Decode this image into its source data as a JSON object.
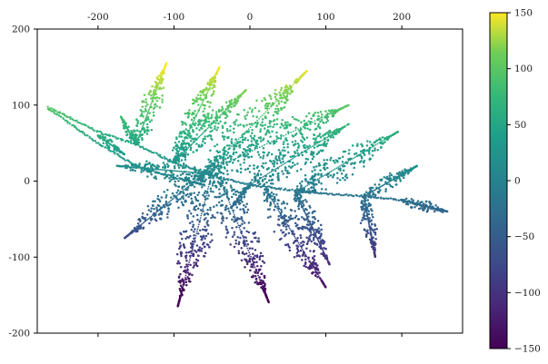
{
  "chart_data": {
    "type": "scatter",
    "title": "",
    "xlabel": "",
    "ylabel": "",
    "xlim": [
      -280,
      280
    ],
    "ylim": [
      -200,
      200
    ],
    "x_ticks": [
      -200,
      -100,
      0,
      100,
      200
    ],
    "x_tick_labels": [
      "-200",
      "-100",
      "0",
      "100",
      "200"
    ],
    "x_tick_position": "top",
    "y_ticks": [
      -200,
      -100,
      0,
      100,
      200
    ],
    "y_tick_labels": [
      "-200",
      "-100",
      "0",
      "100",
      "200"
    ],
    "grid": false,
    "legend": "none",
    "colormap": "viridis",
    "color_variable": "y",
    "colorbar": {
      "range": [
        -150,
        150
      ],
      "ticks": [
        -150,
        -100,
        -50,
        0,
        50,
        100,
        150
      ],
      "tick_labels": [
        "−150",
        "−100",
        "−50",
        "0",
        "50",
        "100",
        "150"
      ],
      "position": "right"
    },
    "series": [
      {
        "shape": "fern (dense point cloud)",
        "stem": [
          [
            -265,
            97
          ],
          [
            -200,
            65
          ],
          [
            -150,
            48
          ],
          [
            -100,
            25
          ],
          [
            -60,
            10
          ],
          [
            0,
            -5
          ],
          [
            80,
            -15
          ],
          [
            150,
            -20
          ],
          [
            200,
            -25
          ],
          [
            255,
            -40
          ]
        ],
        "stem_branch": [
          [
            -265,
            95
          ],
          [
            -200,
            50
          ],
          [
            -150,
            20
          ],
          [
            -100,
            5
          ],
          [
            -60,
            -5
          ]
        ],
        "fronds": [
          {
            "base": [
              -200,
              60
            ],
            "tip": [
              -165,
              35
            ]
          },
          {
            "base": [
              -150,
              48
            ],
            "tip": [
              -110,
              155
            ]
          },
          {
            "base": [
              -150,
              48
            ],
            "tip": [
              -170,
              85
            ]
          },
          {
            "base": [
              -100,
              25
            ],
            "tip": [
              -40,
              150
            ]
          },
          {
            "base": [
              -100,
              25
            ],
            "tip": [
              -5,
              120
            ]
          },
          {
            "base": [
              -60,
              10
            ],
            "tip": [
              75,
              145
            ]
          },
          {
            "base": [
              -60,
              10
            ],
            "tip": [
              130,
              100
            ]
          },
          {
            "base": [
              -60,
              10
            ],
            "tip": [
              -175,
              20
            ]
          },
          {
            "base": [
              -60,
              10
            ],
            "tip": [
              -165,
              -75
            ]
          },
          {
            "base": [
              -50,
              10
            ],
            "tip": [
              -95,
              -165
            ]
          },
          {
            "base": [
              -40,
              5
            ],
            "tip": [
              25,
              -160
            ]
          },
          {
            "base": [
              0,
              -5
            ],
            "tip": [
              130,
              75
            ]
          },
          {
            "base": [
              0,
              -5
            ],
            "tip": [
              -25,
              -35
            ]
          },
          {
            "base": [
              20,
              -10
            ],
            "tip": [
              100,
              -140
            ]
          },
          {
            "base": [
              60,
              -15
            ],
            "tip": [
              195,
              65
            ]
          },
          {
            "base": [
              60,
              -15
            ],
            "tip": [
              105,
              -110
            ]
          },
          {
            "base": [
              150,
              -20
            ],
            "tip": [
              220,
              20
            ]
          },
          {
            "base": [
              150,
              -20
            ],
            "tip": [
              165,
              -100
            ]
          },
          {
            "base": [
              200,
              -25
            ],
            "tip": [
              260,
              -40
            ]
          }
        ]
      }
    ]
  }
}
